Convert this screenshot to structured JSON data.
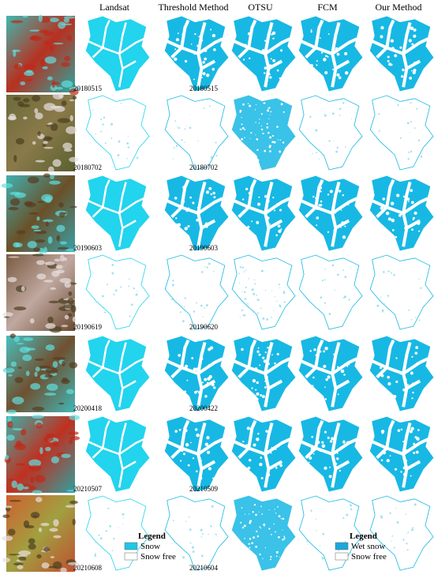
{
  "header": {
    "columns": [
      "Landsat",
      "Threshold Method",
      "OTSU",
      "FCM",
      "Our Method"
    ]
  },
  "rows": [
    {
      "landsat_date": "20180515",
      "sentinel_date": "20180515"
    },
    {
      "landsat_date": "20180702",
      "sentinel_date": "20180702"
    },
    {
      "landsat_date": "20190603",
      "sentinel_date": "20190603"
    },
    {
      "landsat_date": "20190619",
      "sentinel_date": "20190620"
    },
    {
      "landsat_date": "20200418",
      "sentinel_date": "20200422"
    },
    {
      "landsat_date": "20210507",
      "sentinel_date": "20210509"
    },
    {
      "landsat_date": "20210608",
      "sentinel_date": "20210604"
    }
  ],
  "legends": [
    {
      "title": "Legend",
      "items": [
        "Snow",
        "Snow free"
      ]
    },
    {
      "title": "Legend",
      "items": [
        "Wet snow",
        "Snow free"
      ]
    }
  ]
}
